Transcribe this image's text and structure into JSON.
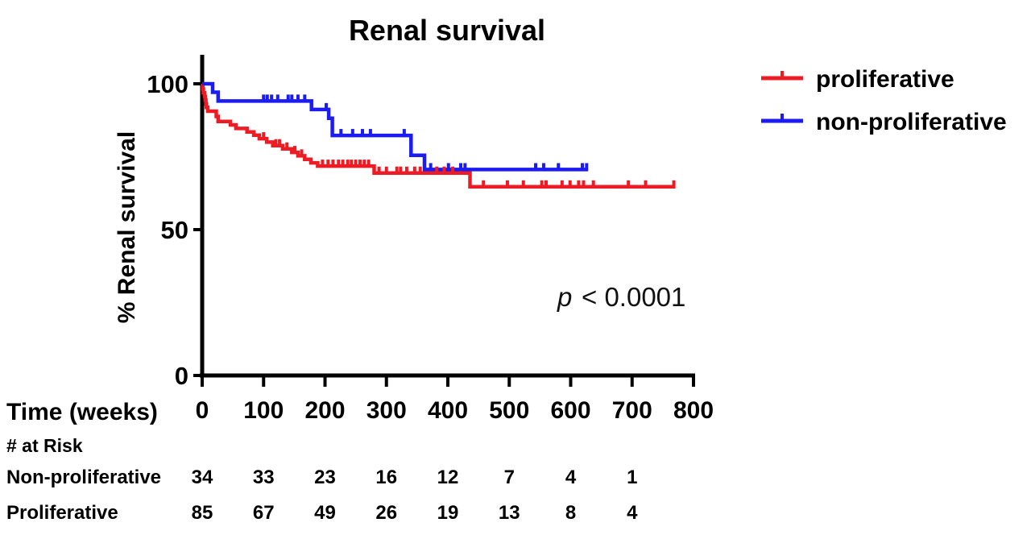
{
  "chart_data": {
    "type": "line",
    "subtype": "kaplan-meier-step",
    "title": "Renal survival",
    "ylabel": "% Renal survival",
    "xlabel": "Time (weeks)",
    "xlim": [
      0,
      800
    ],
    "ylim": [
      0,
      100
    ],
    "x_ticks": [
      0,
      100,
      200,
      300,
      400,
      500,
      600,
      700,
      800
    ],
    "y_ticks": [
      0,
      50,
      100
    ],
    "grid": false,
    "legend_position": "outside-top-right",
    "axis_color": "#000000",
    "annotation": {
      "p_italic": "p",
      "p_rest": "< 0.0001"
    },
    "legend": [
      {
        "label": "proliferative",
        "color": "#ed1c24"
      },
      {
        "label": "non-proliferative",
        "color": "#1c1cf0"
      }
    ],
    "series": [
      {
        "name": "proliferative",
        "color": "#ed1c24",
        "steps": [
          [
            0,
            100
          ],
          [
            1,
            100
          ],
          [
            1,
            98.2
          ],
          [
            2,
            98.2
          ],
          [
            2,
            96.9
          ],
          [
            4,
            96.9
          ],
          [
            4,
            95.6
          ],
          [
            5,
            95.6
          ],
          [
            5,
            94.4
          ],
          [
            6,
            94.4
          ],
          [
            6,
            93.1
          ],
          [
            7,
            93.1
          ],
          [
            7,
            91.9
          ],
          [
            9,
            91.9
          ],
          [
            9,
            90.6
          ],
          [
            23,
            90.6
          ],
          [
            23,
            88.8
          ],
          [
            26,
            88.8
          ],
          [
            26,
            87.1
          ],
          [
            46,
            87.1
          ],
          [
            46,
            85.9
          ],
          [
            55,
            85.9
          ],
          [
            55,
            84.7
          ],
          [
            73,
            84.7
          ],
          [
            73,
            83.5
          ],
          [
            84,
            83.5
          ],
          [
            84,
            82.4
          ],
          [
            93,
            82.4
          ],
          [
            93,
            81.2
          ],
          [
            105,
            81.2
          ],
          [
            105,
            80.0
          ],
          [
            115,
            80.0
          ],
          [
            115,
            78.8
          ],
          [
            131,
            78.8
          ],
          [
            131,
            77.7
          ],
          [
            146,
            77.7
          ],
          [
            146,
            76.5
          ],
          [
            156,
            76.5
          ],
          [
            156,
            75.3
          ],
          [
            167,
            75.3
          ],
          [
            167,
            74.1
          ],
          [
            177,
            74.1
          ],
          [
            177,
            72.9
          ],
          [
            188,
            72.9
          ],
          [
            188,
            71.8
          ],
          [
            280,
            71.8
          ],
          [
            280,
            69.4
          ],
          [
            436,
            69.4
          ],
          [
            436,
            64.7
          ],
          [
            770,
            64.7
          ]
        ],
        "censor_weeks": [
          100,
          120,
          126,
          138,
          151,
          162,
          196,
          205,
          213,
          222,
          229,
          237,
          243,
          250,
          257,
          264,
          271,
          288,
          300,
          317,
          323,
          333,
          346,
          355,
          382,
          394,
          408,
          421,
          458,
          497,
          523,
          553,
          560,
          586,
          599,
          613,
          621,
          637,
          694,
          722,
          768
        ]
      },
      {
        "name": "non-proliferative",
        "color": "#1c1cf0",
        "steps": [
          [
            0,
            100
          ],
          [
            17,
            100
          ],
          [
            17,
            97.1
          ],
          [
            26,
            97.1
          ],
          [
            26,
            94.1
          ],
          [
            178,
            94.1
          ],
          [
            178,
            91.2
          ],
          [
            206,
            91.2
          ],
          [
            206,
            88.2
          ],
          [
            212,
            88.2
          ],
          [
            212,
            82.3
          ],
          [
            340,
            82.3
          ],
          [
            340,
            75.5
          ],
          [
            362,
            75.5
          ],
          [
            362,
            70.6
          ],
          [
            628,
            70.6
          ]
        ],
        "censor_weeks": [
          100,
          106,
          113,
          123,
          140,
          146,
          156,
          167,
          202,
          226,
          245,
          261,
          274,
          329,
          372,
          401,
          421,
          428,
          543,
          556,
          580,
          619,
          626
        ]
      }
    ],
    "risk_table": {
      "header": "# at Risk",
      "value_times": [
        0,
        100,
        200,
        300,
        400,
        500,
        600,
        700
      ],
      "rows": [
        {
          "label": "Non-proliferative",
          "values": [
            34,
            33,
            23,
            16,
            12,
            7,
            4,
            1
          ]
        },
        {
          "label": "Proliferative",
          "values": [
            85,
            67,
            49,
            26,
            19,
            13,
            8,
            4
          ]
        }
      ]
    }
  }
}
